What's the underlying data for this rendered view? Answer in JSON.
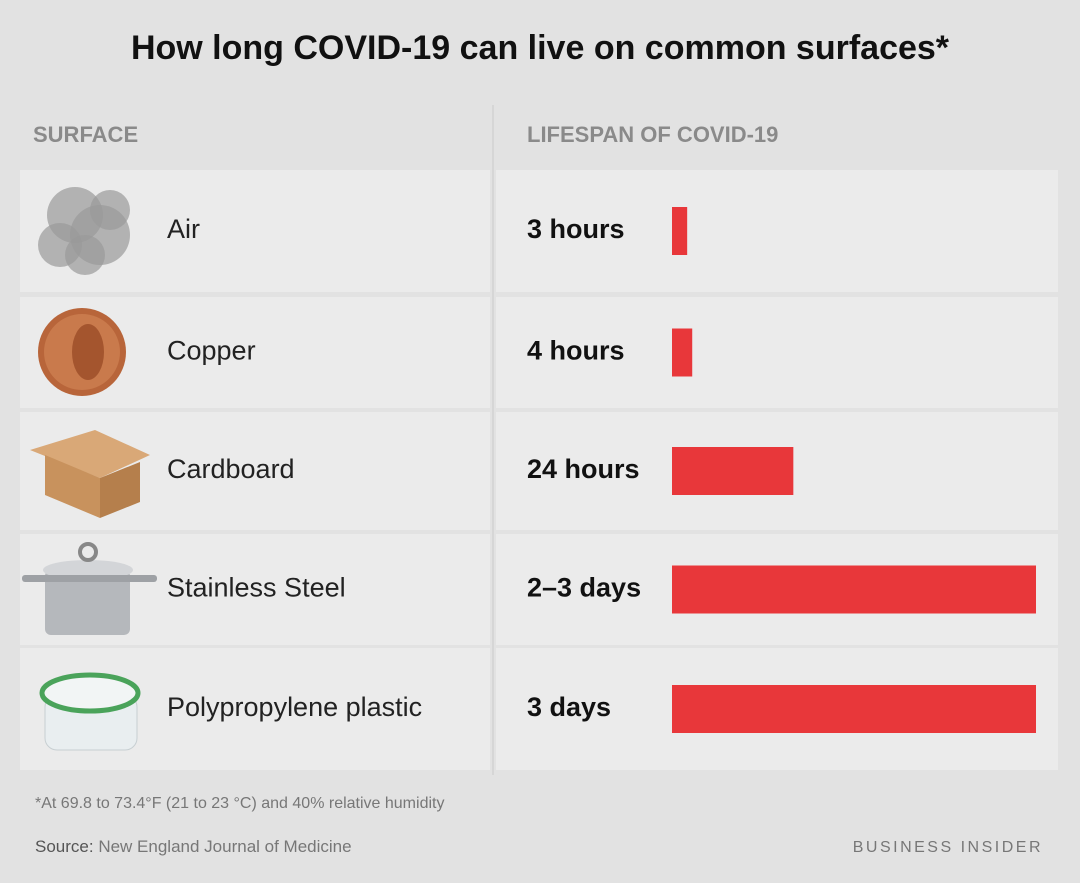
{
  "chart_data": {
    "type": "bar",
    "title": "How long COVID-19 can live on common surfaces*",
    "category_header": "SURFACE",
    "value_header": "LIFESPAN OF COVID-19",
    "categories": [
      "Air",
      "Copper",
      "Cardboard",
      "Stainless Steel",
      "Polypropylene plastic"
    ],
    "values": [
      3,
      4,
      24,
      72,
      72
    ],
    "value_labels": [
      "3 hours",
      "4 hours",
      "24 hours",
      "2–3 days",
      "3 days"
    ],
    "color": "#e8373a",
    "footnote": "*At 69.8 to 73.4°F (21 to 23 °C) and 40% relative humidity",
    "source_label": "Source:",
    "source": "New England Journal of Medicine",
    "brand": "BUSINESS INSIDER"
  }
}
